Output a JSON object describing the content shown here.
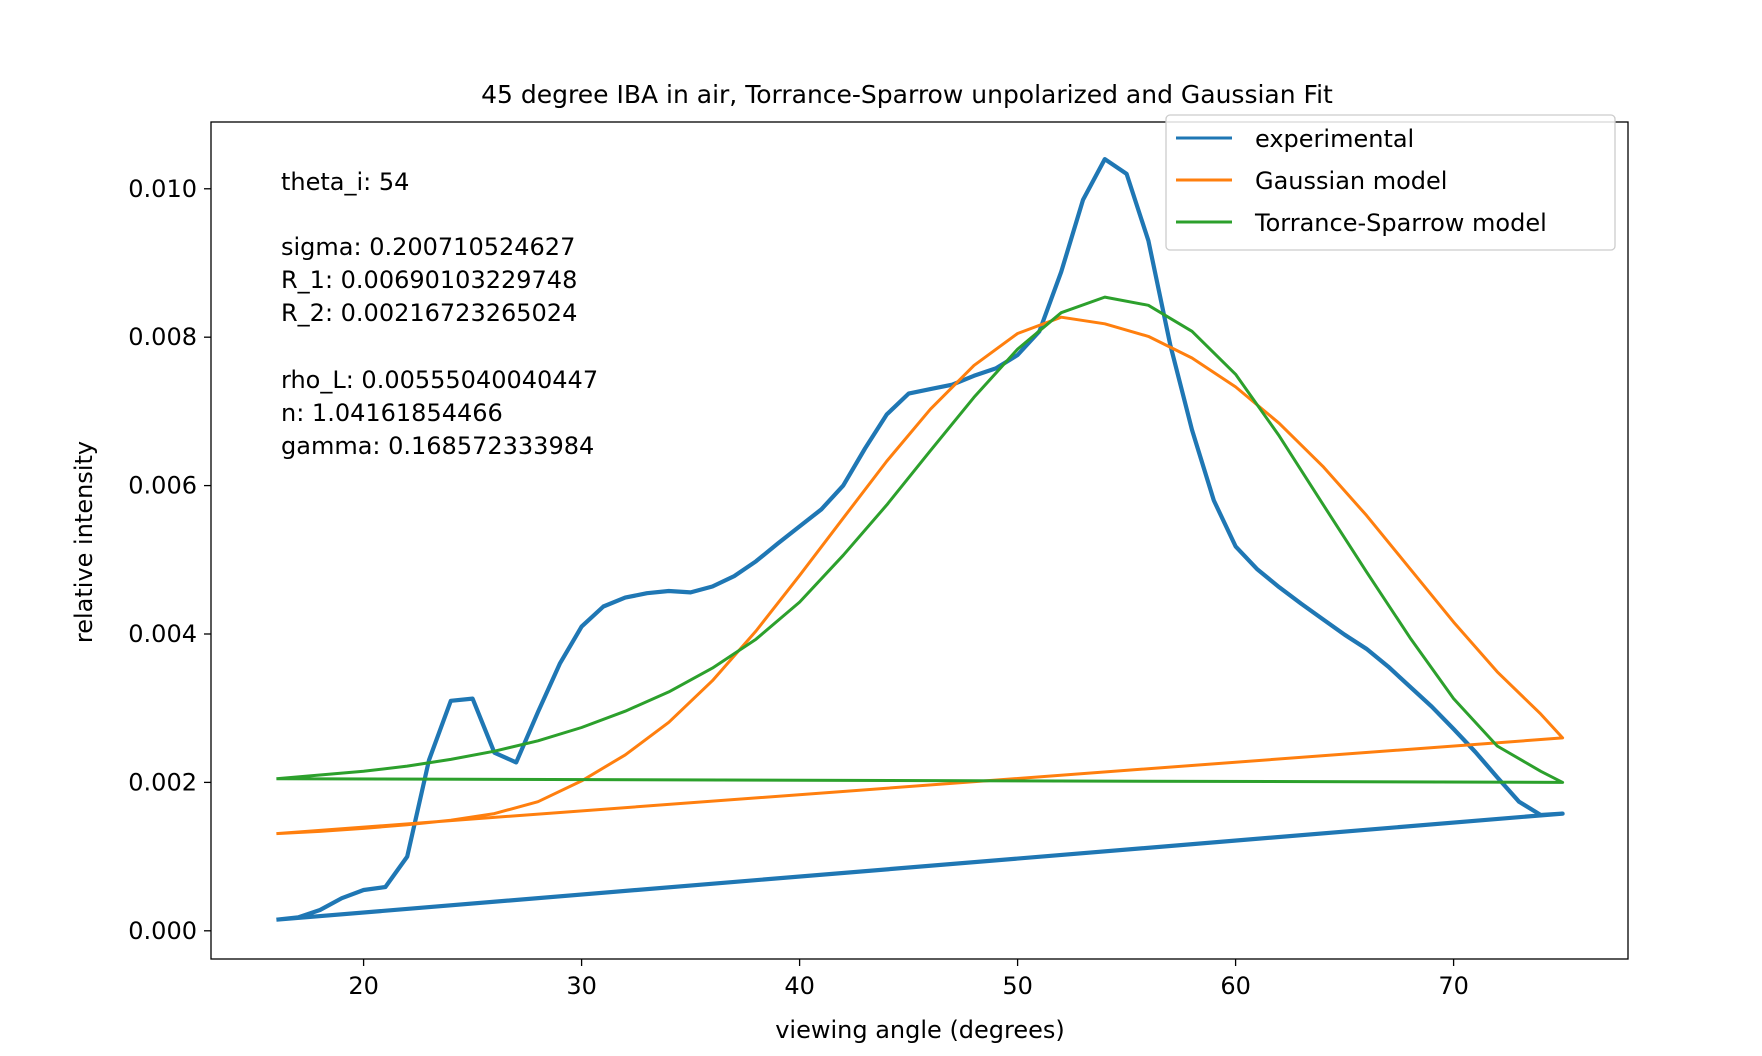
{
  "chart_data": {
    "type": "line",
    "title": "45 degree IBA in air, Torrance-Sparrow unpolarized and Gaussian Fit",
    "xlabel": "viewing angle (degrees)",
    "ylabel": "relative intensity",
    "xlim": [
      13,
      78
    ],
    "ylim": [
      -0.00038,
      0.0109
    ],
    "xticks": [
      20,
      30,
      40,
      50,
      60,
      70
    ],
    "xtick_labels": [
      "20",
      "30",
      "40",
      "50",
      "60",
      "70"
    ],
    "yticks": [
      0.0,
      0.002,
      0.004,
      0.006,
      0.008,
      0.01
    ],
    "ytick_labels": [
      "0.000",
      "0.002",
      "0.004",
      "0.006",
      "0.008",
      "0.010"
    ],
    "grid": false,
    "legend_position": "top-right",
    "annotations": [
      "theta_i: 54",
      "sigma: 0.200710524627",
      "R_1: 0.00690103229748",
      "R_2: 0.00216723265024",
      "rho_L: 0.00555040040447",
      "n: 1.04161854466",
      "gamma: 0.168572333984"
    ],
    "series": [
      {
        "name": "experimental",
        "color": "#1f77b4",
        "x": [
          16,
          17,
          18,
          19,
          20,
          21,
          22,
          23,
          24,
          25,
          26,
          27,
          28,
          29,
          30,
          31,
          32,
          33,
          34,
          35,
          36,
          37,
          38,
          39,
          40,
          41,
          42,
          43,
          44,
          45,
          46,
          47,
          48,
          49,
          50,
          51,
          52,
          53,
          54,
          55,
          56,
          57,
          58,
          59,
          60,
          61,
          62,
          63,
          64,
          65,
          66,
          67,
          68,
          69,
          70,
          71,
          72,
          73,
          74,
          75,
          16
        ],
        "y": [
          0.00015,
          0.00018,
          0.00028,
          0.00044,
          0.00055,
          0.00059,
          0.001,
          0.0023,
          0.0031,
          0.00313,
          0.0024,
          0.00227,
          0.00295,
          0.0036,
          0.0041,
          0.00437,
          0.00449,
          0.00455,
          0.00458,
          0.00456,
          0.00464,
          0.00478,
          0.00498,
          0.00522,
          0.00545,
          0.00568,
          0.006,
          0.0065,
          0.00696,
          0.00724,
          0.0073,
          0.00736,
          0.00748,
          0.00758,
          0.00776,
          0.00808,
          0.00888,
          0.00985,
          0.0104,
          0.0102,
          0.0093,
          0.0079,
          0.00675,
          0.0058,
          0.00518,
          0.00487,
          0.00463,
          0.00441,
          0.0042,
          0.00399,
          0.0038,
          0.00356,
          0.00329,
          0.00302,
          0.00272,
          0.00241,
          0.00207,
          0.00174,
          0.00156,
          0.00158,
          0.00015
        ]
      },
      {
        "name": "Gaussian model",
        "color": "#ff7f0e",
        "x": [
          16,
          18,
          20,
          22,
          24,
          26,
          28,
          30,
          32,
          34,
          36,
          38,
          40,
          42,
          44,
          46,
          48,
          50,
          52,
          54,
          56,
          58,
          60,
          62,
          64,
          66,
          68,
          70,
          72,
          74,
          75,
          16
        ],
        "y": [
          0.00131,
          0.00134,
          0.00138,
          0.00143,
          0.00149,
          0.00158,
          0.00174,
          0.00202,
          0.00237,
          0.00281,
          0.00337,
          0.00404,
          0.00479,
          0.00556,
          0.00633,
          0.00703,
          0.00762,
          0.00805,
          0.00827,
          0.00818,
          0.00801,
          0.00772,
          0.00733,
          0.00684,
          0.00626,
          0.0056,
          0.00488,
          0.00416,
          0.00349,
          0.00292,
          0.0026,
          0.00131
        ]
      },
      {
        "name": "Torrance-Sparrow model",
        "color": "#2ca02c",
        "x": [
          16,
          18,
          20,
          22,
          24,
          26,
          28,
          30,
          32,
          34,
          36,
          38,
          40,
          42,
          44,
          46,
          48,
          50,
          52,
          54,
          56,
          58,
          60,
          62,
          64,
          66,
          68,
          70,
          72,
          74,
          75,
          16
        ],
        "y": [
          0.00205,
          0.0021,
          0.00215,
          0.00222,
          0.00231,
          0.00242,
          0.00256,
          0.00274,
          0.00296,
          0.00322,
          0.00354,
          0.00393,
          0.00443,
          0.00506,
          0.00574,
          0.00647,
          0.00719,
          0.00784,
          0.00833,
          0.00854,
          0.00843,
          0.00808,
          0.0075,
          0.00667,
          0.00575,
          0.00484,
          0.00395,
          0.00313,
          0.00249,
          0.00215,
          0.002,
          0.00205
        ]
      }
    ]
  }
}
